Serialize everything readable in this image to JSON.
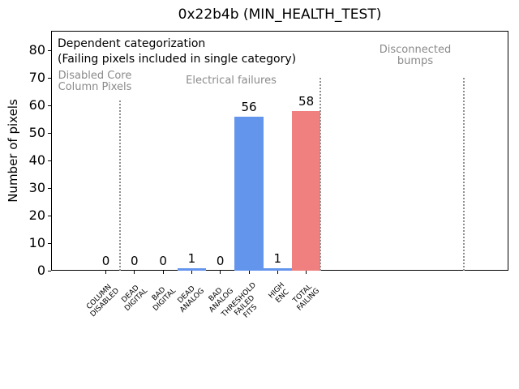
{
  "chart_data": {
    "type": "bar",
    "title": "0x22b4b (MIN_HEALTH_TEST)",
    "ylabel": "Number of pixels",
    "xlabel": "",
    "categories": [
      "COLUMN\nDISABLED",
      "DEAD\nDIGITAL",
      "BAD\nDIGITAL",
      "DEAD\nANALOG",
      "BAD\nANALOG",
      "THRESHOLD\nFAILED\nFITS",
      "HIGH\nENC",
      "TOTAL\nFAILING"
    ],
    "values": [
      0,
      0,
      0,
      1,
      0,
      56,
      1,
      58
    ],
    "bar_colors": [
      "#6495ed",
      "#6495ed",
      "#6495ed",
      "#6495ed",
      "#6495ed",
      "#6495ed",
      "#6495ed",
      "#f08080"
    ],
    "value_labels": [
      "0",
      "0",
      "0",
      "1",
      "0",
      "56",
      "1",
      "58"
    ],
    "yticks": [
      0,
      10,
      20,
      30,
      40,
      50,
      60,
      70,
      80
    ],
    "ylim": [
      0,
      87.2
    ],
    "xlim": [
      -2,
      14
    ],
    "grid": false,
    "legend": null,
    "colors": {
      "bar_default": "#6495ed",
      "bar_total": "#f08080",
      "annotation_gray": "#8a8a8a",
      "separator": "#8f8f8f",
      "axes": "#000000"
    },
    "separators": [
      {
        "x": 0.5,
        "ymax": 62
      },
      {
        "x": 7.5,
        "ymax": 70
      },
      {
        "x": 12.5,
        "ymax": 70
      }
    ],
    "annotations": [
      {
        "id": "note",
        "text": "Dependent categorization\n(Failing pixels included in single category)",
        "color": "#000000"
      },
      {
        "id": "group-disabled",
        "text": "Disabled Core\nColumn Pixels",
        "color": "#8a8a8a"
      },
      {
        "id": "group-electrical",
        "text": "Electrical failures",
        "color": "#8a8a8a"
      },
      {
        "id": "group-disconnected",
        "text": "Disconnected\nbumps",
        "color": "#8a8a8a"
      }
    ]
  }
}
